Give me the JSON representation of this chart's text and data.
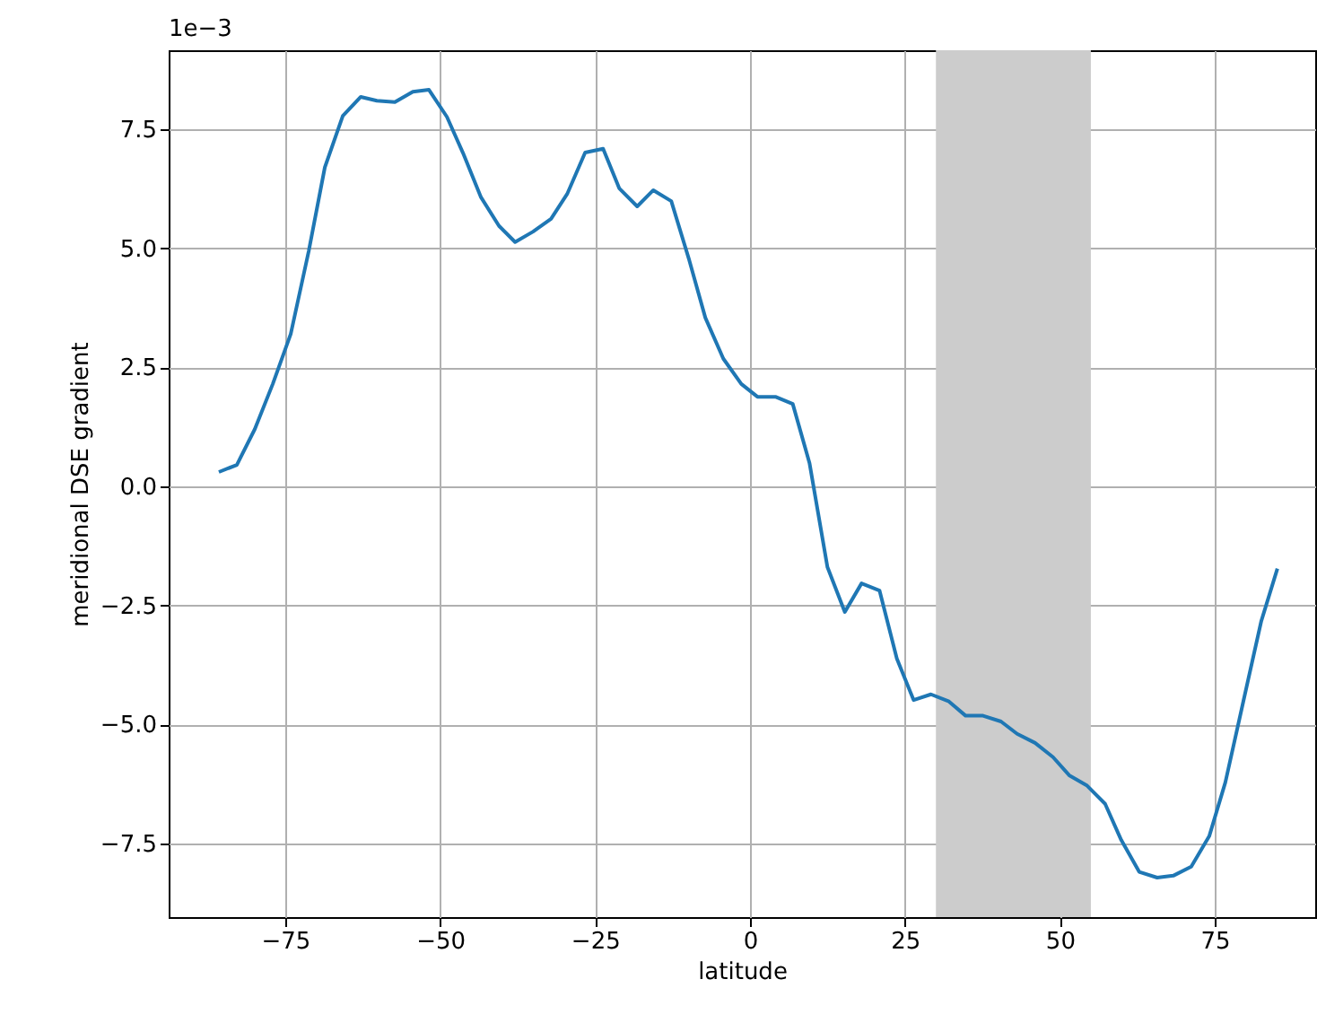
{
  "chart_data": {
    "type": "line",
    "xlabel": "latitude",
    "ylabel": "meridional DSE gradient",
    "annotations": [
      "1e−3"
    ],
    "x": [
      -85.7,
      -82.8,
      -79.9,
      -77,
      -74.1,
      -71.2,
      -68.6,
      -65.7,
      -62.8,
      -60.2,
      -57.3,
      -54.4,
      -51.8,
      -48.9,
      -46.3,
      -43.4,
      -40.5,
      -37.9,
      -35,
      -32.1,
      -29.5,
      -26.6,
      -23.7,
      -21.1,
      -18.2,
      -15.6,
      -12.7,
      -9.8,
      -7.2,
      -4.3,
      -1.4,
      1.2,
      4.1,
      6.9,
      9.6,
      12.5,
      15.3,
      18,
      20.9,
      23.7,
      26.4,
      29.2,
      32.1,
      34.8,
      37.6,
      40.5,
      43.1,
      46,
      48.9,
      51.5,
      54.4,
      57.3,
      59.9,
      62.8,
      65.7,
      68.3,
      71.2,
      74.1,
      76.7,
      79.6,
      82.5,
      85.1
    ],
    "series": [
      {
        "color": "#1f77b4",
        "values": [
          0.3,
          0.45,
          1.2,
          2.15,
          3.2,
          4.94,
          6.7,
          7.78,
          8.18,
          8.1,
          8.07,
          8.29,
          8.33,
          7.76,
          7.0,
          6.07,
          5.47,
          5.13,
          5.35,
          5.62,
          6.14,
          7.01,
          7.09,
          6.26,
          5.88,
          6.22,
          5.99,
          4.75,
          3.54,
          2.68,
          2.15,
          1.88,
          1.88,
          1.73,
          0.49,
          -1.7,
          -2.64,
          -2.04,
          -2.19,
          -3.62,
          -4.49,
          -4.37,
          -4.52,
          -4.82,
          -4.82,
          -4.94,
          -5.2,
          -5.39,
          -5.69,
          -6.07,
          -6.29,
          -6.67,
          -7.43,
          -8.1,
          -8.22,
          -8.18,
          -7.99,
          -7.35,
          -6.22,
          -4.52,
          -2.83,
          -1.73
        ]
      }
    ],
    "xlim": [
      -93.8,
      91.2
    ],
    "ylim": [
      -9.05,
      9.16
    ],
    "xticks": [
      {
        "value": -75,
        "label": "−75"
      },
      {
        "value": -50,
        "label": "−50"
      },
      {
        "value": -25,
        "label": "−25"
      },
      0,
      25,
      50,
      75
    ],
    "yticks": [
      {
        "value": -7.5,
        "label": "−7.5"
      },
      {
        "value": -5,
        "label": "−5.0"
      },
      {
        "value": -2.5,
        "label": "−2.5"
      },
      {
        "value": 0,
        "label": "0.0"
      },
      {
        "value": 2.5,
        "label": "2.5"
      },
      {
        "value": 5,
        "label": "5.0"
      },
      {
        "value": 7.5,
        "label": "7.5"
      }
    ],
    "bands": [
      {
        "axis": "x",
        "from": 30,
        "to": 55,
        "color": "#cccccc"
      }
    ],
    "grid": true
  }
}
